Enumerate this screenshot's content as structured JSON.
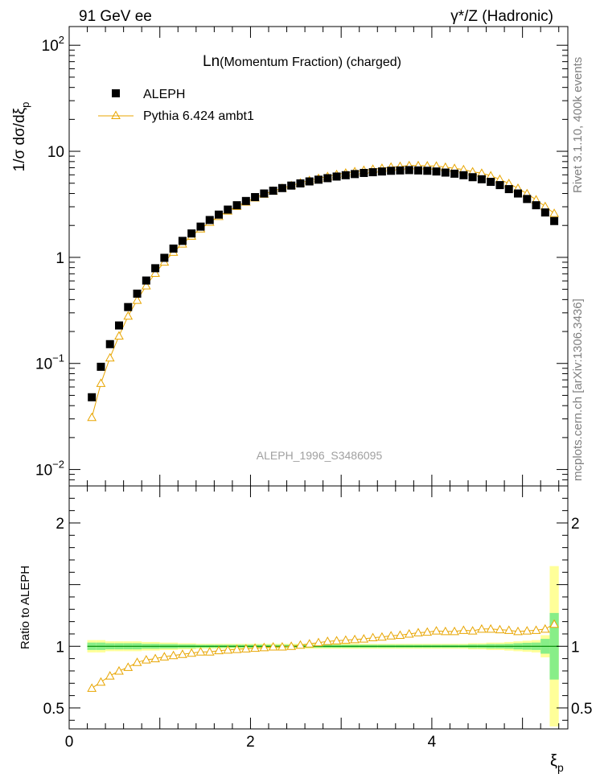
{
  "header": {
    "left": "91 GeV ee",
    "right": "γ*/Z (Hadronic)"
  },
  "side_labels": {
    "rivet": "Rivet 3.1.10,  400k events",
    "mcplots": "mcplots.cern.ch [arXiv:1306.3436]"
  },
  "colors": {
    "data": "#000000",
    "mc": "#e8a500",
    "band_outer": "#ffff99",
    "band_inner": "#88ee88",
    "ref_line": "#008800"
  },
  "chart_data": [
    {
      "type": "scatter",
      "scale": "log",
      "title_prefix": "Ln",
      "title": "(Momentum Fraction) (charged)",
      "watermark": "ALEPH_1996_S3486095",
      "ylabel": "1/σ dσ/dξ",
      "ylabel_sub": "p",
      "xlim": [
        0,
        5.5
      ],
      "ylim": [
        0.007,
        150
      ],
      "yticks": [
        {
          "value": 0.01,
          "base": "10",
          "exp": "−2"
        },
        {
          "value": 0.1,
          "base": "10",
          "exp": "−1"
        },
        {
          "value": 1,
          "base": "1",
          "exp": ""
        },
        {
          "value": 10,
          "base": "10",
          "exp": ""
        },
        {
          "value": 100,
          "base": "10",
          "exp": "2"
        }
      ],
      "legend": [
        {
          "name": "ALEPH",
          "marker": "square"
        },
        {
          "name": "Pythia 6.424 ambt1",
          "marker": "triangle-line"
        }
      ],
      "x": [
        0.25,
        0.35,
        0.45,
        0.55,
        0.65,
        0.75,
        0.85,
        0.95,
        1.05,
        1.15,
        1.25,
        1.35,
        1.45,
        1.55,
        1.65,
        1.75,
        1.85,
        1.95,
        2.05,
        2.15,
        2.25,
        2.35,
        2.45,
        2.55,
        2.65,
        2.75,
        2.85,
        2.95,
        3.05,
        3.15,
        3.25,
        3.35,
        3.45,
        3.55,
        3.65,
        3.75,
        3.85,
        3.95,
        4.05,
        4.15,
        4.25,
        4.35,
        4.45,
        4.55,
        4.65,
        4.75,
        4.85,
        4.95,
        5.05,
        5.15,
        5.25,
        5.35
      ],
      "series": [
        {
          "name": "ALEPH",
          "values": [
            0.048,
            0.093,
            0.152,
            0.228,
            0.34,
            0.455,
            0.605,
            0.79,
            0.99,
            1.21,
            1.43,
            1.68,
            1.95,
            2.25,
            2.53,
            2.82,
            3.1,
            3.4,
            3.7,
            4.0,
            4.25,
            4.5,
            4.75,
            4.98,
            5.2,
            5.4,
            5.58,
            5.78,
            5.95,
            6.1,
            6.25,
            6.35,
            6.45,
            6.55,
            6.6,
            6.65,
            6.6,
            6.55,
            6.45,
            6.3,
            6.15,
            5.95,
            5.7,
            5.45,
            5.15,
            4.8,
            4.4,
            4.0,
            3.55,
            3.1,
            2.65,
            2.2
          ]
        },
        {
          "name": "Pythia 6.424 ambt1",
          "values": [
            0.031,
            0.065,
            0.113,
            0.182,
            0.28,
            0.395,
            0.54,
            0.71,
            0.905,
            1.12,
            1.34,
            1.59,
            1.86,
            2.15,
            2.44,
            2.74,
            3.03,
            3.33,
            3.64,
            3.95,
            4.22,
            4.48,
            4.75,
            5.04,
            5.31,
            5.56,
            5.8,
            6.04,
            6.25,
            6.44,
            6.62,
            6.78,
            6.92,
            7.1,
            7.21,
            7.33,
            7.33,
            7.3,
            7.26,
            7.08,
            6.91,
            6.72,
            6.41,
            6.22,
            5.88,
            5.44,
            4.97,
            4.48,
            3.99,
            3.49,
            3.02,
            2.6
          ]
        }
      ]
    },
    {
      "type": "line",
      "ylabel": "Ratio to ALEPH",
      "xlabel": "ξ",
      "xlabel_sub": "p",
      "xlim": [
        0,
        5.5
      ],
      "ylim": [
        0.33,
        2.3
      ],
      "xticks": [
        0,
        2,
        4
      ],
      "yticks": [
        {
          "value": 0.5,
          "label": "0.5"
        },
        {
          "value": 1,
          "label": "1"
        },
        {
          "value": 2,
          "label": "2"
        }
      ],
      "x": [
        0.25,
        0.35,
        0.45,
        0.55,
        0.65,
        0.75,
        0.85,
        0.95,
        1.05,
        1.15,
        1.25,
        1.35,
        1.45,
        1.55,
        1.65,
        1.75,
        1.85,
        1.95,
        2.05,
        2.15,
        2.25,
        2.35,
        2.45,
        2.55,
        2.65,
        2.75,
        2.85,
        2.95,
        3.05,
        3.15,
        3.25,
        3.35,
        3.45,
        3.55,
        3.65,
        3.75,
        3.85,
        3.95,
        4.05,
        4.15,
        4.25,
        4.35,
        4.45,
        4.55,
        4.65,
        4.75,
        4.85,
        4.95,
        5.05,
        5.15,
        5.25,
        5.35
      ],
      "ratio": [
        0.66,
        0.71,
        0.76,
        0.8,
        0.83,
        0.87,
        0.89,
        0.9,
        0.915,
        0.925,
        0.935,
        0.945,
        0.955,
        0.955,
        0.965,
        0.97,
        0.975,
        0.98,
        0.985,
        0.99,
        0.995,
        0.995,
        1.0,
        1.01,
        1.02,
        1.03,
        1.04,
        1.045,
        1.05,
        1.055,
        1.06,
        1.07,
        1.075,
        1.085,
        1.09,
        1.1,
        1.11,
        1.115,
        1.125,
        1.12,
        1.12,
        1.13,
        1.125,
        1.14,
        1.14,
        1.135,
        1.13,
        1.12,
        1.125,
        1.13,
        1.14,
        1.18
      ],
      "band_outer": [
        0.05,
        0.05,
        0.04,
        0.04,
        0.04,
        0.04,
        0.035,
        0.035,
        0.03,
        0.03,
        0.025,
        0.025,
        0.02,
        0.02,
        0.02,
        0.02,
        0.02,
        0.02,
        0.02,
        0.02,
        0.02,
        0.02,
        0.02,
        0.02,
        0.02,
        0.02,
        0.02,
        0.02,
        0.02,
        0.02,
        0.02,
        0.02,
        0.02,
        0.02,
        0.02,
        0.02,
        0.02,
        0.02,
        0.02,
        0.02,
        0.02,
        0.02,
        0.025,
        0.025,
        0.03,
        0.03,
        0.035,
        0.04,
        0.045,
        0.05,
        0.09,
        0.65
      ],
      "band_inner": [
        0.03,
        0.03,
        0.025,
        0.025,
        0.025,
        0.025,
        0.02,
        0.02,
        0.018,
        0.018,
        0.015,
        0.015,
        0.012,
        0.012,
        0.012,
        0.012,
        0.012,
        0.012,
        0.012,
        0.012,
        0.012,
        0.012,
        0.012,
        0.012,
        0.012,
        0.012,
        0.012,
        0.012,
        0.012,
        0.012,
        0.012,
        0.012,
        0.012,
        0.012,
        0.012,
        0.012,
        0.012,
        0.012,
        0.012,
        0.012,
        0.012,
        0.012,
        0.015,
        0.015,
        0.018,
        0.018,
        0.02,
        0.025,
        0.028,
        0.03,
        0.06,
        0.27
      ]
    }
  ]
}
